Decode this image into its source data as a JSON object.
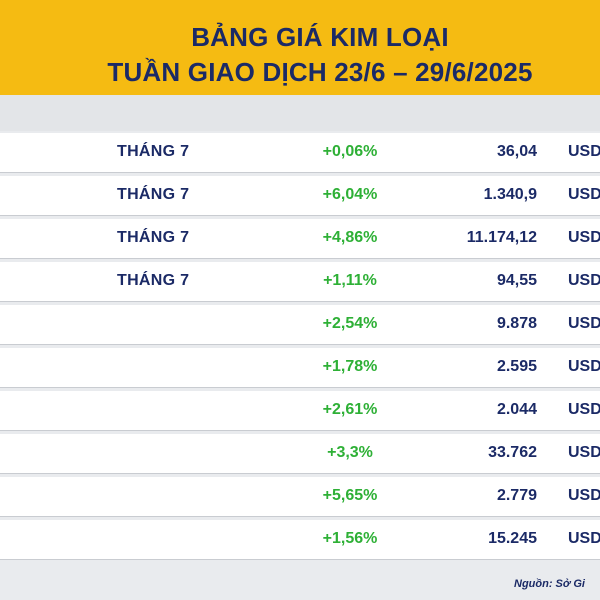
{
  "header": {
    "title_line1": "BẢNG GIÁ KIM LOẠI",
    "title_line2": "TUẦN GIAO DỊCH 23/6 – 29/6/2025"
  },
  "source": "Nguồn: Sở Gi",
  "colors": {
    "header_bg": "#f5bb12",
    "title": "#1b2a66",
    "positive": "#2eb036"
  },
  "chart_data": {
    "type": "table",
    "title": "BẢNG GIÁ KIM LOẠI TUẦN GIAO DỊCH 23/6 – 29/6/2025",
    "rows": [
      {
        "period": "THÁNG 7",
        "change": "+0,06%",
        "price": "36,04",
        "unit": "USD"
      },
      {
        "period": "THÁNG 7",
        "change": "+6,04%",
        "price": "1.340,9",
        "unit": "USD"
      },
      {
        "period": "THÁNG 7",
        "change": "+4,86%",
        "price": "11.174,12",
        "unit": "USD"
      },
      {
        "period": "THÁNG 7",
        "change": "+1,11%",
        "price": "94,55",
        "unit": "USD"
      },
      {
        "period": "",
        "change": "+2,54%",
        "price": "9.878",
        "unit": "USD"
      },
      {
        "period": "",
        "change": "+1,78%",
        "price": "2.595",
        "unit": "USD"
      },
      {
        "period": "",
        "change": "+2,61%",
        "price": "2.044",
        "unit": "USD"
      },
      {
        "period": "",
        "change": "+3,3%",
        "price": "33.762",
        "unit": "USD"
      },
      {
        "period": "",
        "change": "+5,65%",
        "price": "2.779",
        "unit": "USD"
      },
      {
        "period": "",
        "change": "+1,56%",
        "price": "15.245",
        "unit": "USD"
      }
    ]
  }
}
